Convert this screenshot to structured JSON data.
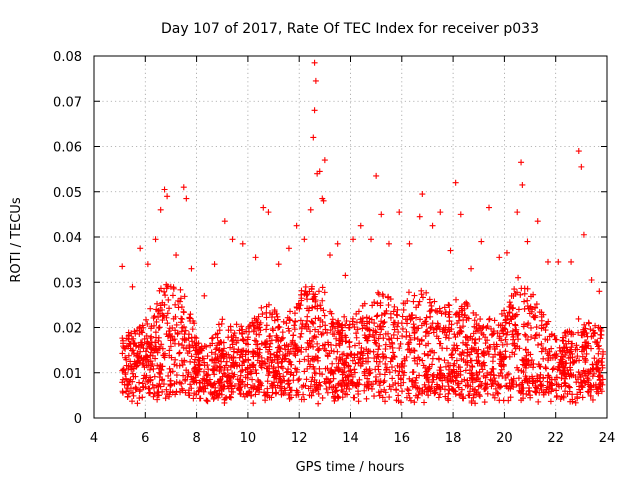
{
  "chart_data": {
    "type": "scatter",
    "title": "Day 107 of 2017, Rate Of TEC Index for receiver p033",
    "xlabel": "GPS time / hours",
    "ylabel": "ROTI / TECUs",
    "xlim": [
      4,
      24
    ],
    "ylim": [
      0,
      0.08
    ],
    "x_ticks": [
      4,
      6,
      8,
      10,
      12,
      14,
      16,
      18,
      20,
      22,
      24
    ],
    "x_tick_labels": [
      "4",
      "6",
      "8",
      "10",
      "12",
      "14",
      "16",
      "18",
      "20",
      "22",
      "24"
    ],
    "y_ticks": [
      0,
      0.01,
      0.02,
      0.03,
      0.04,
      0.05,
      0.06,
      0.07,
      0.08
    ],
    "y_tick_labels": [
      "0",
      "0.01",
      "0.02",
      "0.03",
      "0.04",
      "0.05",
      "0.06",
      "0.07",
      "0.08"
    ],
    "grid": true,
    "legend": "none",
    "marker": "plus",
    "color": "#ff0000",
    "series": [
      {
        "name": "",
        "points": [
          [
            5.1,
            0.0335
          ],
          [
            5.5,
            0.029
          ],
          [
            5.8,
            0.0375
          ],
          [
            6.1,
            0.034
          ],
          [
            6.4,
            0.0395
          ],
          [
            6.6,
            0.046
          ],
          [
            6.75,
            0.0505
          ],
          [
            6.85,
            0.049
          ],
          [
            7.2,
            0.036
          ],
          [
            7.5,
            0.051
          ],
          [
            7.6,
            0.0485
          ],
          [
            7.8,
            0.033
          ],
          [
            8.3,
            0.027
          ],
          [
            8.7,
            0.034
          ],
          [
            9.1,
            0.0435
          ],
          [
            9.4,
            0.0395
          ],
          [
            9.8,
            0.0385
          ],
          [
            10.3,
            0.0355
          ],
          [
            10.6,
            0.0465
          ],
          [
            10.8,
            0.0455
          ],
          [
            11.2,
            0.034
          ],
          [
            11.6,
            0.0375
          ],
          [
            11.9,
            0.0425
          ],
          [
            12.2,
            0.0395
          ],
          [
            12.45,
            0.046
          ],
          [
            12.6,
            0.0785
          ],
          [
            12.65,
            0.0745
          ],
          [
            12.6,
            0.068
          ],
          [
            12.55,
            0.062
          ],
          [
            12.7,
            0.054
          ],
          [
            12.8,
            0.0545
          ],
          [
            12.9,
            0.0485
          ],
          [
            13.0,
            0.057
          ],
          [
            12.95,
            0.048
          ],
          [
            13.2,
            0.036
          ],
          [
            13.5,
            0.0385
          ],
          [
            13.8,
            0.0315
          ],
          [
            14.1,
            0.0395
          ],
          [
            14.4,
            0.0425
          ],
          [
            14.8,
            0.0395
          ],
          [
            15.0,
            0.0535
          ],
          [
            15.2,
            0.045
          ],
          [
            15.5,
            0.0385
          ],
          [
            15.9,
            0.0455
          ],
          [
            16.3,
            0.0385
          ],
          [
            16.7,
            0.0445
          ],
          [
            16.8,
            0.0495
          ],
          [
            17.2,
            0.0425
          ],
          [
            17.5,
            0.0455
          ],
          [
            17.9,
            0.037
          ],
          [
            18.1,
            0.052
          ],
          [
            18.3,
            0.045
          ],
          [
            18.7,
            0.033
          ],
          [
            19.1,
            0.039
          ],
          [
            19.4,
            0.0465
          ],
          [
            19.8,
            0.0355
          ],
          [
            20.1,
            0.0365
          ],
          [
            20.5,
            0.0455
          ],
          [
            20.65,
            0.0565
          ],
          [
            20.7,
            0.0515
          ],
          [
            20.9,
            0.039
          ],
          [
            21.3,
            0.0435
          ],
          [
            21.7,
            0.0345
          ],
          [
            22.1,
            0.0345
          ],
          [
            22.6,
            0.0345
          ],
          [
            22.9,
            0.059
          ],
          [
            23.0,
            0.0555
          ],
          [
            23.1,
            0.0405
          ],
          [
            23.4,
            0.0305
          ],
          [
            23.7,
            0.028
          ]
        ]
      }
    ]
  }
}
